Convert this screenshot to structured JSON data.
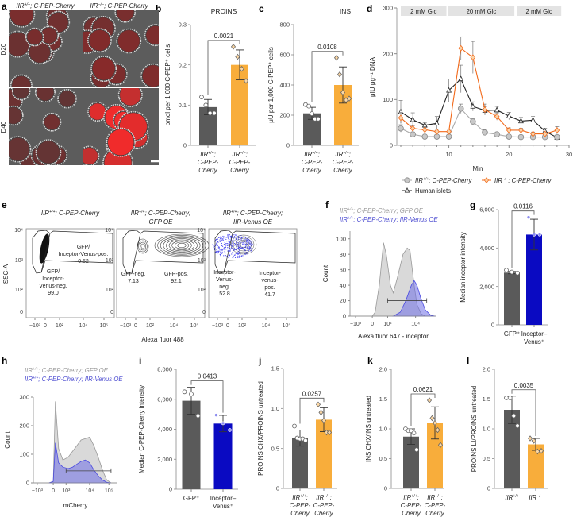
{
  "panel_letters": [
    "a",
    "b",
    "c",
    "d",
    "e",
    "f",
    "g",
    "h",
    "i",
    "j",
    "k",
    "l"
  ],
  "panel_a": {
    "columns": [
      {
        "g": "IIR",
        "s": "+/+",
        "t": "; C-PEP-Cherry"
      },
      {
        "g": "IIR",
        "s": "−/−",
        "t": "; C-PEP-Cherry"
      }
    ],
    "rows": [
      "D20",
      "D40"
    ]
  },
  "chart_data": [
    {
      "id": "b",
      "type": "bar",
      "title": "PROINS",
      "ylabel": "pmol per 1,000 C-PEP⁺ cells",
      "ylim": [
        0,
        0.3
      ],
      "yticks": [
        0,
        0.1,
        0.2,
        0.3
      ],
      "ytick_labels": [
        "0",
        "0.1",
        "0.2",
        "0.3"
      ],
      "p_value": "0.0021",
      "series": [
        {
          "name": "IIR+/+; C-PEP-Cherry",
          "mean": 0.095,
          "sd": 0.019,
          "points": [
            0.12,
            0.1,
            0.08,
            0.08
          ],
          "color": "#5a5a5a",
          "marker": "circle",
          "xlabel": [
            {
              "g": "IIR",
              "s": "+/+",
              "t": ";"
            },
            "C-PEP-",
            "Cherry"
          ]
        },
        {
          "name": "IIR−/−; C-PEP-Cherry",
          "mean": 0.2,
          "sd": 0.037,
          "points": [
            0.245,
            0.22,
            0.19,
            0.16
          ],
          "color": "#f8ad3b",
          "marker": "diamond",
          "xlabel": [
            {
              "g": "IIR",
              "s": "−/−",
              "t": ";"
            },
            "C-PEP-",
            "Cherry"
          ]
        }
      ]
    },
    {
      "id": "c",
      "type": "bar",
      "title": "INS",
      "ylabel": "μU per 1,000 C-PEP⁺ cells",
      "ylim": [
        0,
        800
      ],
      "yticks": [
        0,
        200,
        400,
        600,
        800
      ],
      "ytick_labels": [
        "0",
        "200",
        "400",
        "600",
        "800"
      ],
      "p_value": "0.0108",
      "series": [
        {
          "name": "IIR+/+; C-PEP-Cherry",
          "mean": 212,
          "sd": 40,
          "points": [
            270,
            260,
            210,
            175,
            175
          ],
          "color": "#5a5a5a",
          "marker": "circle",
          "xlabel": [
            {
              "g": "IIR",
              "s": "+/+",
              "t": ";"
            },
            "C-PEP-",
            "Cherry"
          ]
        },
        {
          "name": "IIR−/−; C-PEP-Cherry",
          "mean": 400,
          "sd": 120,
          "points": [
            580,
            470,
            350,
            300,
            310
          ],
          "color": "#f8ad3b",
          "marker": "diamond",
          "xlabel": [
            {
              "g": "IIR",
              "s": "−/−",
              "t": ";"
            },
            "C-PEP-",
            "Cherry"
          ]
        }
      ]
    },
    {
      "id": "d",
      "type": "line",
      "ylabel": "μIU μg⁻¹ DNA",
      "xlabel": "Min",
      "xlim": [
        2,
        30
      ],
      "ylim": [
        0,
        300
      ],
      "xticks": [
        10,
        20,
        30
      ],
      "xtick_labels": [
        "10",
        "20",
        "30"
      ],
      "yticks": [
        0,
        100,
        200,
        300
      ],
      "ytick_labels": [
        "0",
        "100",
        "200",
        "300"
      ],
      "conditions": [
        {
          "label": "2 mM Glc",
          "from": 2,
          "to": 9.6
        },
        {
          "label": "20 mM Glc",
          "from": 9.9,
          "to": 20.9
        },
        {
          "label": "2 mM Glc",
          "from": 21.3,
          "to": 28.7
        }
      ],
      "x": [
        2,
        4,
        6,
        8,
        10,
        12,
        14,
        16,
        18,
        20,
        22,
        24,
        26,
        28
      ],
      "series": [
        {
          "name": "Human islets",
          "marker": "triangle",
          "color": "#222222",
          "fill": "#ffffff",
          "values": [
            73,
            56,
            44,
            48,
            120,
            145,
            85,
            76,
            77,
            64,
            53,
            55,
            31,
            17
          ],
          "sd": [
            25,
            15,
            5,
            15,
            25,
            30,
            10,
            8,
            8,
            8,
            8,
            8,
            6,
            4
          ]
        },
        {
          "name": "IIR+/+; C-PEP-Cherry",
          "legend": {
            "g": "IIR",
            "s": "+/+",
            "t": "; C-PEP-Cherry"
          },
          "marker": "circle",
          "color": "#aaaaaa",
          "fill": "#c8c8c8",
          "values": [
            37,
            24,
            19,
            19,
            19,
            80,
            52,
            28,
            24,
            19,
            18,
            18,
            18,
            18
          ],
          "sd": [
            8,
            5,
            4,
            4,
            4,
            10,
            6,
            6,
            4,
            4,
            3,
            3,
            3,
            3
          ]
        },
        {
          "name": "IIR−/−; C-PEP-Cherry",
          "legend": {
            "g": "IIR",
            "s": "−/−",
            "t": "; C-PEP-Cherry"
          },
          "marker": "diamond",
          "color": "#f26a1b",
          "fill": "#fbd3a8",
          "values": [
            60,
            37,
            34,
            30,
            30,
            212,
            192,
            78,
            63,
            33,
            33,
            25,
            25,
            33
          ],
          "sd": [
            12,
            6,
            5,
            5,
            5,
            25,
            35,
            12,
            8,
            5,
            4,
            4,
            4,
            8
          ]
        }
      ],
      "legend_position": "bottom"
    },
    {
      "id": "e",
      "type": "flow_cytometry",
      "ylabel": "SSC-A",
      "xlabel": "Alexa fluor 488",
      "ytick_labels": [
        "10⁴",
        "10³",
        "10²",
        "0"
      ],
      "xtick_labels": [
        "−10³",
        "0",
        "10²",
        "10⁴",
        "10⁵"
      ],
      "plots": [
        {
          "title": [
            {
              "g": "IIR",
              "s": "+/+",
              "t": "; C-PEP-Cherry"
            }
          ],
          "gates": [
            {
              "label": [
                "GFP/",
                "Inceptor-",
                "Venus-neg."
              ],
              "percent": "99.0"
            },
            {
              "label": [
                "GFP/",
                "Inceptor-Venus-pos."
              ],
              "percent": "0.52"
            }
          ]
        },
        {
          "title": [
            {
              "g": "IIR",
              "s": "+/+",
              "t": "; C-PEP-Cherry;"
            },
            "GFP OE"
          ],
          "gates": [
            {
              "label": [
                "GFP-neg."
              ],
              "percent": "7.13"
            },
            {
              "label": [
                "GFP-pos."
              ],
              "percent": "92.1"
            }
          ]
        },
        {
          "title": [
            {
              "g": "IIR",
              "s": "+/+",
              "t": "; C-PEP-Cherry;"
            },
            "IIR-Venus OE"
          ],
          "gates": [
            {
              "label": [
                "Inceptor-",
                "Venus-",
                "neg."
              ],
              "percent": "52.8"
            },
            {
              "label": [
                "Inceptor-",
                "venus-",
                "pos."
              ],
              "percent": "41.7"
            }
          ]
        }
      ]
    },
    {
      "id": "f",
      "type": "area",
      "ylabel": "Count",
      "xlabel": "Alexa fluor 647 - inceptor",
      "ylim": [
        0,
        110
      ],
      "xlim": [
        -1.6,
        4.6
      ],
      "yticks": [
        0,
        20,
        40,
        60,
        80,
        100
      ],
      "ytick_labels": [
        "0",
        "20",
        "40",
        "60",
        "80",
        "100"
      ],
      "xticks": [
        -1.2,
        0,
        1.1,
        3.1
      ],
      "xtick_labels": [
        "−10³",
        "0",
        "10²",
        "10⁴"
      ],
      "gate": {
        "from": 1.1,
        "to": 3.9,
        "level": 20
      },
      "series": [
        {
          "legend": {
            "g": "IIR",
            "s": "+/+",
            "t": "; C-PEP-Cherry; GFP OE"
          },
          "color": "#999999",
          "fill": "#d9d9d9",
          "x": [
            -1.6,
            0,
            0.2,
            0.5,
            0.8,
            1.0,
            1.3,
            1.5,
            1.8,
            2.2,
            2.5,
            2.7,
            3.0,
            3.2,
            3.5,
            3.8,
            4.6
          ],
          "y": [
            0,
            0,
            5,
            40,
            95,
            80,
            40,
            30,
            50,
            80,
            88,
            85,
            40,
            15,
            3,
            0,
            0
          ]
        },
        {
          "legend": {
            "g": "IIR",
            "s": "+/+",
            "t": "; C-PEP-Cherry; IIR-Venus OE"
          },
          "color": "#4a4ae0",
          "fill": "rgba(110,110,230,0.55)",
          "x": [
            1.5,
            2.0,
            2.4,
            2.8,
            3.0,
            3.2,
            3.5,
            3.8,
            4.2,
            4.5
          ],
          "y": [
            0,
            5,
            20,
            40,
            46,
            40,
            22,
            8,
            1,
            0
          ]
        }
      ]
    },
    {
      "id": "g",
      "type": "bar",
      "ylabel": "Median inceptor intensity",
      "ylim": [
        0,
        6000
      ],
      "yticks": [
        0,
        2000,
        4000,
        6000
      ],
      "ytick_labels": [
        "0",
        "2,000",
        "4,000",
        "6,000"
      ],
      "p_value": "0.0116",
      "series": [
        {
          "name": "GFP+",
          "mean": 2720,
          "sd": 60,
          "points": [
            2850,
            2750,
            2700
          ],
          "color": "#5a5a5a",
          "marker": "circle",
          "xlabel": [
            "GFP⁺"
          ]
        },
        {
          "name": "Inceptor–Venus+",
          "mean": 4700,
          "sd": 800,
          "points": [
            5600,
            4700,
            4700
          ],
          "color": "#0a0ac2",
          "marker": "dot",
          "xlabel": [
            "Inceptor–",
            "Venus⁺"
          ]
        }
      ]
    },
    {
      "id": "h",
      "type": "area",
      "ylabel": "Count",
      "xlabel": "mCherry",
      "ylim": [
        0,
        300
      ],
      "xlim": [
        -0.93,
        3.0
      ],
      "yticks": [
        0,
        100,
        200,
        300
      ],
      "ytick_labels": [
        "0",
        "100",
        "200",
        "300"
      ],
      "xticks": [
        -0.75,
        0,
        0.6,
        1.7,
        2.6
      ],
      "xtick_labels": [
        "−10³",
        "0",
        "10³",
        "10⁴",
        "10⁵"
      ],
      "gate": {
        "from": 0.6,
        "to": 2.7,
        "level": 42
      },
      "series": [
        {
          "legend": {
            "g": "IIR",
            "s": "+/+",
            "t": "; C-PEP-Cherry; GFP OE"
          },
          "color": "#999999",
          "fill": "#d9d9d9",
          "x": [
            -0.93,
            -0.2,
            0,
            0.1,
            0.25,
            0.45,
            0.7,
            0.9,
            1.1,
            1.3,
            1.5,
            1.7,
            1.9,
            2.1,
            2.3,
            2.5,
            2.7,
            3.0
          ],
          "y": [
            0,
            0,
            5,
            285,
            120,
            80,
            90,
            110,
            130,
            150,
            155,
            160,
            130,
            90,
            45,
            10,
            0,
            0
          ]
        },
        {
          "legend": {
            "g": "IIR",
            "s": "+/+",
            "t": "; C-PEP-Cherry; IIR-Venus OE"
          },
          "color": "#4a4ae0",
          "fill": "rgba(110,110,230,0.55)",
          "x": [
            -0.2,
            0,
            0.1,
            0.25,
            0.45,
            0.7,
            0.9,
            1.1,
            1.3,
            1.5,
            1.7,
            1.9,
            2.1,
            2.3,
            2.5,
            2.7
          ],
          "y": [
            0,
            5,
            140,
            70,
            55,
            50,
            55,
            65,
            75,
            80,
            70,
            45,
            25,
            10,
            2,
            0
          ]
        }
      ]
    },
    {
      "id": "i",
      "type": "bar",
      "ylabel": "Median C-PEP-Cherry intensity",
      "ylim": [
        0,
        8000
      ],
      "yticks": [
        0,
        2000,
        4000,
        6000,
        8000
      ],
      "ytick_labels": [
        "0",
        "2,000",
        "4,000",
        "6,000",
        "8,000"
      ],
      "p_value": "0.0413",
      "series": [
        {
          "name": "GFP+",
          "mean": 5900,
          "sd": 900,
          "points": [
            6500,
            6350,
            4900
          ],
          "color": "#5a5a5a",
          "marker": "circle",
          "xlabel": [
            "GFP⁺"
          ]
        },
        {
          "name": "Inceptor–Venus+",
          "mean": 4380,
          "sd": 550,
          "points": [
            4950,
            4400,
            3950
          ],
          "color": "#0a0ac2",
          "marker": "dot",
          "xlabel": [
            "Inceptor–",
            "Venus⁺"
          ]
        }
      ]
    },
    {
      "id": "j",
      "type": "bar",
      "ylabel": "PROINS CHX/PROINS untreated",
      "ylim": [
        0,
        1.5
      ],
      "yticks": [
        0,
        0.5,
        1.0,
        1.5
      ],
      "ytick_labels": [
        "0",
        "0.5",
        "1.0",
        "1.5"
      ],
      "p_value": "0.0257",
      "series": [
        {
          "name": "IIR+/+; C-PEP-Cherry",
          "mean": 0.63,
          "sd": 0.1,
          "points": [
            0.78,
            0.63,
            0.62,
            0.62,
            0.6
          ],
          "color": "#5a5a5a",
          "marker": "circle",
          "xlabel": [
            {
              "g": "IIR",
              "s": "+/+",
              "t": ";"
            },
            "C-PEP-",
            "Cherry"
          ]
        },
        {
          "name": "IIR−/−; C-PEP-Cherry",
          "mean": 0.86,
          "sd": 0.15,
          "points": [
            1.05,
            0.95,
            0.85,
            0.7,
            0.7
          ],
          "color": "#f8ad3b",
          "marker": "diamond",
          "xlabel": [
            {
              "g": "IIR",
              "s": "−/−",
              "t": ";"
            },
            "C-PEP-",
            "Cherry"
          ]
        }
      ]
    },
    {
      "id": "k",
      "type": "bar",
      "ylabel": "INS CHX/INS untreated",
      "ylim": [
        0,
        2.0
      ],
      "yticks": [
        0,
        0.5,
        1.0,
        1.5,
        2.0
      ],
      "ytick_labels": [
        "0",
        "0.5",
        "1.0",
        "1.5",
        "2.0"
      ],
      "p_value": "0.0621",
      "series": [
        {
          "name": "IIR+/+; C-PEP-Cherry",
          "mean": 0.87,
          "sd": 0.13,
          "points": [
            1.0,
            0.97,
            0.97,
            0.93,
            0.65
          ],
          "color": "#5a5a5a",
          "marker": "circle",
          "xlabel": [
            {
              "g": "IIR",
              "s": "+/+",
              "t": ";"
            },
            "C-PEP-",
            "Cherry"
          ]
        },
        {
          "name": "IIR−/−; C-PEP-Cherry",
          "mean": 1.1,
          "sd": 0.27,
          "points": [
            1.48,
            1.18,
            1.1,
            0.98,
            0.73
          ],
          "color": "#f8ad3b",
          "marker": "diamond",
          "xlabel": [
            {
              "g": "IIR",
              "s": "−/−",
              "t": ";"
            },
            "C-PEP-",
            "Cherry"
          ]
        }
      ]
    },
    {
      "id": "l",
      "type": "bar",
      "ylabel": "PROINS LI/PROINS untreated",
      "ylim": [
        0,
        2.0
      ],
      "yticks": [
        0,
        0.5,
        1.0,
        1.5,
        2.0
      ],
      "ytick_labels": [
        "0",
        "0.5",
        "1.0",
        "1.5",
        "2.0"
      ],
      "p_value": "0.0035",
      "series": [
        {
          "name": "IIR+/+",
          "mean": 1.32,
          "sd": 0.23,
          "points": [
            1.52,
            1.52,
            1.22,
            1.05
          ],
          "color": "#5a5a5a",
          "marker": "circle",
          "xlabel": [
            {
              "g": "IIR",
              "s": "+/+",
              "t": ""
            }
          ]
        },
        {
          "name": "IIR−/−",
          "mean": 0.74,
          "sd": 0.1,
          "points": [
            0.84,
            0.8,
            0.62,
            0.63
          ],
          "color": "#f8ad3b",
          "marker": "diamond",
          "xlabel": [
            {
              "g": "IIR",
              "s": "−/−",
              "t": ""
            }
          ]
        }
      ]
    }
  ]
}
